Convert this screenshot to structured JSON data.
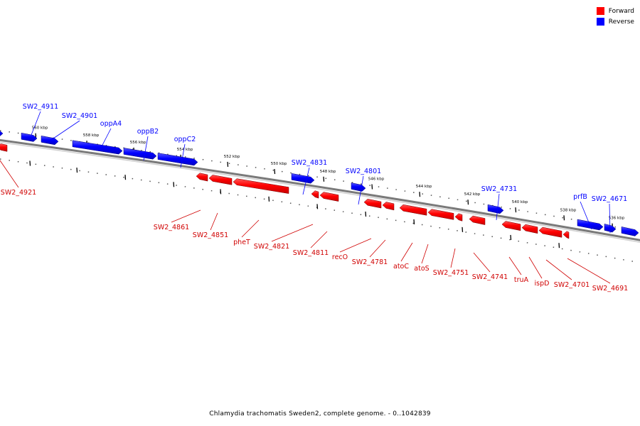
{
  "legend": {
    "forward": {
      "label": "Forward",
      "color": "#ff0000"
    },
    "reverse": {
      "label": "Reverse",
      "color": "#0000ff"
    }
  },
  "caption": "Chlamydia trachomatis Sweden2, complete genome. - 0..1042839",
  "scale_ticks": [
    "560 kbp",
    "558 kbp",
    "556 kbp",
    "554 kbp",
    "552 kbp",
    "550 kbp",
    "548 kbp",
    "546 kbp",
    "544 kbp",
    "542 kbp",
    "540 kbp",
    "538 kbp",
    "536 kbp"
  ],
  "reverse_labels": [
    "SW2_4911",
    "SW2_4901",
    "oppA4",
    "oppB2",
    "oppC2",
    "SW2_4831",
    "SW2_4801",
    "SW2_4731",
    "prfB",
    "SW2_4671"
  ],
  "forward_labels": [
    "SW2_4921",
    "SW2_4861",
    "SW2_4851",
    "pheT",
    "SW2_4821",
    "SW2_4811",
    "recO",
    "SW2_4781",
    "atoC",
    "atoS",
    "SW2_4751",
    "SW2_4741",
    "truA",
    "ispD",
    "SW2_4701",
    "SW2_4691"
  ]
}
